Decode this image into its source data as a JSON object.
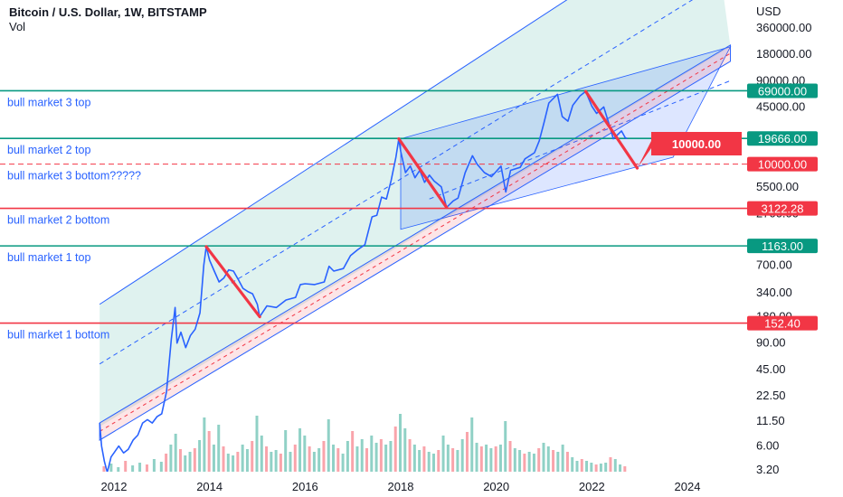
{
  "header": {
    "title": "Bitcoin / U.S. Dollar, 1W, BITSTAMP",
    "volume_label": "Vol",
    "currency": "USD"
  },
  "chart_data": {
    "type": "line",
    "ylog": true,
    "xlim": [
      2011.7,
      2025.3
    ],
    "ylim": [
      2.6,
      1000000
    ],
    "y_ticks": [
      "360000.00",
      "180000.00",
      "90000.00",
      "45000.00",
      "20000.00",
      "5500.00",
      "2700.00",
      "1200.00",
      "700.00",
      "340.00",
      "180.00",
      "90.00",
      "45.00",
      "22.50",
      "11.50",
      "6.00",
      "3.20"
    ],
    "x_ticks": [
      "2012",
      "2014",
      "2016",
      "2018",
      "2020",
      "2022",
      "2024"
    ],
    "colors": {
      "price": "#2962ff",
      "green_line": "#089981",
      "red_line": "#f23645",
      "channel_fill": "rgba(8,153,129,0.13)",
      "blue_fill": "rgba(41,98,255,0.16)",
      "pink_band": "rgba(242,54,69,0.13)"
    },
    "price_series": [
      {
        "x": 2011.7,
        "y": 11
      },
      {
        "x": 2011.74,
        "y": 6
      },
      {
        "x": 2011.8,
        "y": 4
      },
      {
        "x": 2011.86,
        "y": 3
      },
      {
        "x": 2011.94,
        "y": 4.5
      },
      {
        "x": 2012.0,
        "y": 5
      },
      {
        "x": 2012.1,
        "y": 6
      },
      {
        "x": 2012.2,
        "y": 5
      },
      {
        "x": 2012.3,
        "y": 5.5
      },
      {
        "x": 2012.4,
        "y": 7
      },
      {
        "x": 2012.5,
        "y": 8
      },
      {
        "x": 2012.6,
        "y": 11
      },
      {
        "x": 2012.7,
        "y": 12
      },
      {
        "x": 2012.8,
        "y": 11
      },
      {
        "x": 2012.9,
        "y": 13
      },
      {
        "x": 2013.0,
        "y": 14
      },
      {
        "x": 2013.1,
        "y": 25
      },
      {
        "x": 2013.2,
        "y": 100
      },
      {
        "x": 2013.28,
        "y": 230
      },
      {
        "x": 2013.32,
        "y": 90
      },
      {
        "x": 2013.4,
        "y": 120
      },
      {
        "x": 2013.5,
        "y": 80
      },
      {
        "x": 2013.6,
        "y": 110
      },
      {
        "x": 2013.7,
        "y": 130
      },
      {
        "x": 2013.8,
        "y": 200
      },
      {
        "x": 2013.88,
        "y": 700
      },
      {
        "x": 2013.93,
        "y": 1140
      },
      {
        "x": 2014.0,
        "y": 800
      },
      {
        "x": 2014.1,
        "y": 600
      },
      {
        "x": 2014.2,
        "y": 450
      },
      {
        "x": 2014.3,
        "y": 500
      },
      {
        "x": 2014.4,
        "y": 620
      },
      {
        "x": 2014.5,
        "y": 600
      },
      {
        "x": 2014.6,
        "y": 480
      },
      {
        "x": 2014.7,
        "y": 380
      },
      {
        "x": 2014.8,
        "y": 350
      },
      {
        "x": 2014.9,
        "y": 330
      },
      {
        "x": 2015.0,
        "y": 250
      },
      {
        "x": 2015.05,
        "y": 180
      },
      {
        "x": 2015.2,
        "y": 240
      },
      {
        "x": 2015.4,
        "y": 230
      },
      {
        "x": 2015.6,
        "y": 280
      },
      {
        "x": 2015.8,
        "y": 300
      },
      {
        "x": 2015.9,
        "y": 420
      },
      {
        "x": 2016.0,
        "y": 430
      },
      {
        "x": 2016.2,
        "y": 420
      },
      {
        "x": 2016.4,
        "y": 450
      },
      {
        "x": 2016.5,
        "y": 680
      },
      {
        "x": 2016.6,
        "y": 600
      },
      {
        "x": 2016.8,
        "y": 640
      },
      {
        "x": 2016.95,
        "y": 900
      },
      {
        "x": 2017.1,
        "y": 1050
      },
      {
        "x": 2017.25,
        "y": 1200
      },
      {
        "x": 2017.4,
        "y": 2500
      },
      {
        "x": 2017.5,
        "y": 2600
      },
      {
        "x": 2017.6,
        "y": 4200
      },
      {
        "x": 2017.7,
        "y": 4000
      },
      {
        "x": 2017.8,
        "y": 6500
      },
      {
        "x": 2017.9,
        "y": 12000
      },
      {
        "x": 2017.96,
        "y": 19500
      },
      {
        "x": 2018.0,
        "y": 14000
      },
      {
        "x": 2018.1,
        "y": 8000
      },
      {
        "x": 2018.2,
        "y": 9500
      },
      {
        "x": 2018.3,
        "y": 7000
      },
      {
        "x": 2018.4,
        "y": 8500
      },
      {
        "x": 2018.5,
        "y": 6200
      },
      {
        "x": 2018.6,
        "y": 7500
      },
      {
        "x": 2018.7,
        "y": 6400
      },
      {
        "x": 2018.85,
        "y": 5500
      },
      {
        "x": 2018.96,
        "y": 3200
      },
      {
        "x": 2019.1,
        "y": 3800
      },
      {
        "x": 2019.2,
        "y": 4100
      },
      {
        "x": 2019.35,
        "y": 8000
      },
      {
        "x": 2019.5,
        "y": 12500
      },
      {
        "x": 2019.6,
        "y": 10000
      },
      {
        "x": 2019.75,
        "y": 8000
      },
      {
        "x": 2019.9,
        "y": 7200
      },
      {
        "x": 2020.1,
        "y": 9500
      },
      {
        "x": 2020.2,
        "y": 4800
      },
      {
        "x": 2020.3,
        "y": 8500
      },
      {
        "x": 2020.5,
        "y": 9200
      },
      {
        "x": 2020.6,
        "y": 11500
      },
      {
        "x": 2020.8,
        "y": 13500
      },
      {
        "x": 2020.9,
        "y": 18500
      },
      {
        "x": 2021.0,
        "y": 30000
      },
      {
        "x": 2021.1,
        "y": 50000
      },
      {
        "x": 2021.28,
        "y": 63000
      },
      {
        "x": 2021.38,
        "y": 35000
      },
      {
        "x": 2021.5,
        "y": 31000
      },
      {
        "x": 2021.6,
        "y": 47000
      },
      {
        "x": 2021.75,
        "y": 60000
      },
      {
        "x": 2021.87,
        "y": 68000
      },
      {
        "x": 2022.0,
        "y": 46000
      },
      {
        "x": 2022.1,
        "y": 38000
      },
      {
        "x": 2022.25,
        "y": 45000
      },
      {
        "x": 2022.35,
        "y": 30000
      },
      {
        "x": 2022.45,
        "y": 19500
      },
      {
        "x": 2022.55,
        "y": 22000
      },
      {
        "x": 2022.62,
        "y": 24000
      },
      {
        "x": 2022.7,
        "y": 20000
      },
      {
        "x": 2022.74,
        "y": 19666
      }
    ],
    "volume_series": [
      [
        2011.8,
        6
      ],
      [
        2011.95,
        9
      ],
      [
        2012.1,
        5
      ],
      [
        2012.25,
        12
      ],
      [
        2012.4,
        7
      ],
      [
        2012.55,
        10
      ],
      [
        2012.7,
        8
      ],
      [
        2012.85,
        14
      ],
      [
        2013.0,
        11
      ],
      [
        2013.1,
        20
      ],
      [
        2013.2,
        30
      ],
      [
        2013.3,
        42
      ],
      [
        2013.4,
        25
      ],
      [
        2013.5,
        18
      ],
      [
        2013.6,
        22
      ],
      [
        2013.7,
        26
      ],
      [
        2013.8,
        35
      ],
      [
        2013.9,
        60
      ],
      [
        2014.0,
        45
      ],
      [
        2014.1,
        30
      ],
      [
        2014.2,
        52
      ],
      [
        2014.3,
        28
      ],
      [
        2014.4,
        20
      ],
      [
        2014.5,
        18
      ],
      [
        2014.6,
        22
      ],
      [
        2014.7,
        30
      ],
      [
        2014.8,
        25
      ],
      [
        2014.9,
        34
      ],
      [
        2015.0,
        62
      ],
      [
        2015.1,
        40
      ],
      [
        2015.2,
        28
      ],
      [
        2015.3,
        22
      ],
      [
        2015.4,
        24
      ],
      [
        2015.5,
        20
      ],
      [
        2015.6,
        46
      ],
      [
        2015.7,
        22
      ],
      [
        2015.8,
        30
      ],
      [
        2015.9,
        48
      ],
      [
        2016.0,
        40
      ],
      [
        2016.1,
        28
      ],
      [
        2016.2,
        22
      ],
      [
        2016.3,
        26
      ],
      [
        2016.4,
        34
      ],
      [
        2016.5,
        58
      ],
      [
        2016.6,
        30
      ],
      [
        2016.7,
        26
      ],
      [
        2016.8,
        20
      ],
      [
        2016.9,
        34
      ],
      [
        2017.0,
        45
      ],
      [
        2017.1,
        28
      ],
      [
        2017.2,
        36
      ],
      [
        2017.3,
        26
      ],
      [
        2017.4,
        40
      ],
      [
        2017.5,
        32
      ],
      [
        2017.6,
        36
      ],
      [
        2017.7,
        30
      ],
      [
        2017.8,
        34
      ],
      [
        2017.9,
        50
      ],
      [
        2018.0,
        64
      ],
      [
        2018.1,
        48
      ],
      [
        2018.2,
        36
      ],
      [
        2018.3,
        30
      ],
      [
        2018.4,
        24
      ],
      [
        2018.5,
        28
      ],
      [
        2018.6,
        22
      ],
      [
        2018.7,
        20
      ],
      [
        2018.8,
        24
      ],
      [
        2018.9,
        40
      ],
      [
        2019.0,
        30
      ],
      [
        2019.1,
        26
      ],
      [
        2019.2,
        24
      ],
      [
        2019.3,
        36
      ],
      [
        2019.4,
        44
      ],
      [
        2019.5,
        60
      ],
      [
        2019.6,
        32
      ],
      [
        2019.7,
        28
      ],
      [
        2019.8,
        30
      ],
      [
        2019.9,
        26
      ],
      [
        2020.0,
        28
      ],
      [
        2020.1,
        30
      ],
      [
        2020.2,
        56
      ],
      [
        2020.3,
        34
      ],
      [
        2020.4,
        26
      ],
      [
        2020.5,
        24
      ],
      [
        2020.6,
        20
      ],
      [
        2020.7,
        22
      ],
      [
        2020.8,
        20
      ],
      [
        2020.9,
        26
      ],
      [
        2021.0,
        32
      ],
      [
        2021.1,
        28
      ],
      [
        2021.2,
        24
      ],
      [
        2021.3,
        22
      ],
      [
        2021.4,
        30
      ],
      [
        2021.5,
        22
      ],
      [
        2021.6,
        16
      ],
      [
        2021.7,
        12
      ],
      [
        2021.8,
        14
      ],
      [
        2021.9,
        12
      ],
      [
        2022.0,
        10
      ],
      [
        2022.1,
        8
      ],
      [
        2022.2,
        9
      ],
      [
        2022.3,
        10
      ],
      [
        2022.4,
        16
      ],
      [
        2022.5,
        14
      ],
      [
        2022.6,
        8
      ],
      [
        2022.7,
        6
      ]
    ],
    "horizontal_lines": [
      {
        "value": 69000,
        "label": "69000.00",
        "color": "#089981",
        "annotation": "bull market 3 top"
      },
      {
        "value": 19666,
        "label": "19666.00",
        "color": "#089981",
        "annotation": "bull market 2 top"
      },
      {
        "value": 10000,
        "label": "10000.00",
        "color": "#f23645",
        "annotation": "bull market 3 bottom?????",
        "dashed": true
      },
      {
        "value": 3122.28,
        "label": "3122.28",
        "color": "#f23645",
        "annotation": "bull market 2 bottom"
      },
      {
        "value": 1163,
        "label": "1163.00",
        "color": "#089981",
        "annotation": "bull market 1 top"
      },
      {
        "value": 152.4,
        "label": "152.40",
        "color": "#f23645",
        "annotation": "bull market 1 bottom"
      }
    ],
    "callout": {
      "label": "10000.00",
      "color": "#f23645"
    },
    "drawdown_arrows": [
      {
        "from": [
          2013.93,
          1140
        ],
        "to": [
          2015.05,
          180
        ]
      },
      {
        "from": [
          2017.96,
          19500
        ],
        "to": [
          2018.96,
          3200
        ]
      },
      {
        "from": [
          2021.87,
          68000
        ],
        "to": [
          2022.95,
          9000
        ]
      }
    ]
  }
}
